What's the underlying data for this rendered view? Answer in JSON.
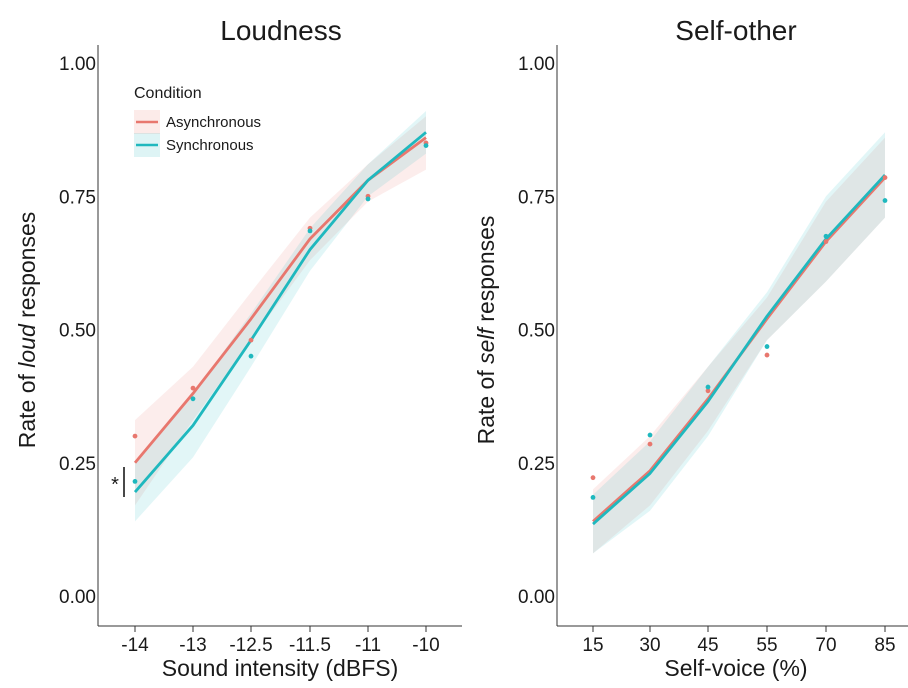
{
  "colors": {
    "asynchronous": "#E8776E",
    "synchronous": "#1FB8BE",
    "axis": "#333333"
  },
  "legend": {
    "title": "Condition",
    "placement": "top-left",
    "items": [
      {
        "label": "Asynchronous",
        "color": "#E8776E"
      },
      {
        "label": "Synchronous",
        "color": "#1FB8BE"
      }
    ]
  },
  "chart_data": [
    {
      "type": "line",
      "title": "Loudness",
      "xlabel": "Sound intensity (dBFS)",
      "ylabel_parts": [
        "Rate of ",
        "loud",
        " responses"
      ],
      "categories": [
        "-14",
        "-13",
        "-12.5",
        "-11.5",
        "-11",
        "-10"
      ],
      "ylim": [
        0,
        1
      ],
      "yticks": [
        "0.00",
        "0.25",
        "0.50",
        "0.75",
        "1.00"
      ],
      "grid": false,
      "series": [
        {
          "name": "Asynchronous",
          "color": "#E8776E",
          "fit": [
            0.25,
            0.38,
            0.52,
            0.67,
            0.78,
            0.86
          ],
          "ci_low": [
            0.17,
            0.33,
            0.48,
            0.63,
            0.74,
            0.8
          ],
          "ci_high": [
            0.33,
            0.43,
            0.57,
            0.71,
            0.81,
            0.9
          ],
          "points": [
            0.3,
            0.39,
            0.48,
            0.69,
            0.75,
            0.85
          ]
        },
        {
          "name": "Synchronous",
          "color": "#1FB8BE",
          "fit": [
            0.195,
            0.32,
            0.48,
            0.65,
            0.78,
            0.87
          ],
          "ci_low": [
            0.14,
            0.26,
            0.43,
            0.61,
            0.75,
            0.83
          ],
          "ci_high": [
            0.25,
            0.38,
            0.53,
            0.69,
            0.81,
            0.91
          ],
          "points": [
            0.215,
            0.37,
            0.45,
            0.685,
            0.745,
            0.845
          ]
        }
      ],
      "annotation": "*"
    },
    {
      "type": "line",
      "title": "Self-other",
      "xlabel": "Self-voice (%)",
      "ylabel_parts": [
        "Rate of ",
        "self",
        " responses"
      ],
      "categories": [
        "15",
        "30",
        "45",
        "55",
        "70",
        "85"
      ],
      "ylim": [
        0,
        1
      ],
      "yticks": [
        "0.00",
        "0.25",
        "0.50",
        "0.75",
        "1.00"
      ],
      "grid": false,
      "series": [
        {
          "name": "Asynchronous",
          "color": "#E8776E",
          "fit": [
            0.14,
            0.235,
            0.37,
            0.52,
            0.665,
            0.785
          ],
          "ci_low": [
            0.08,
            0.17,
            0.31,
            0.48,
            0.59,
            0.71
          ],
          "ci_high": [
            0.2,
            0.3,
            0.43,
            0.56,
            0.74,
            0.86
          ],
          "points": [
            0.222,
            0.285,
            0.385,
            0.452,
            0.665,
            0.785
          ]
        },
        {
          "name": "Synchronous",
          "color": "#1FB8BE",
          "fit": [
            0.135,
            0.23,
            0.365,
            0.525,
            0.67,
            0.79
          ],
          "ci_low": [
            0.08,
            0.16,
            0.3,
            0.48,
            0.59,
            0.71
          ],
          "ci_high": [
            0.19,
            0.29,
            0.43,
            0.57,
            0.75,
            0.87
          ],
          "points": [
            0.185,
            0.302,
            0.392,
            0.468,
            0.675,
            0.742
          ]
        }
      ]
    }
  ]
}
